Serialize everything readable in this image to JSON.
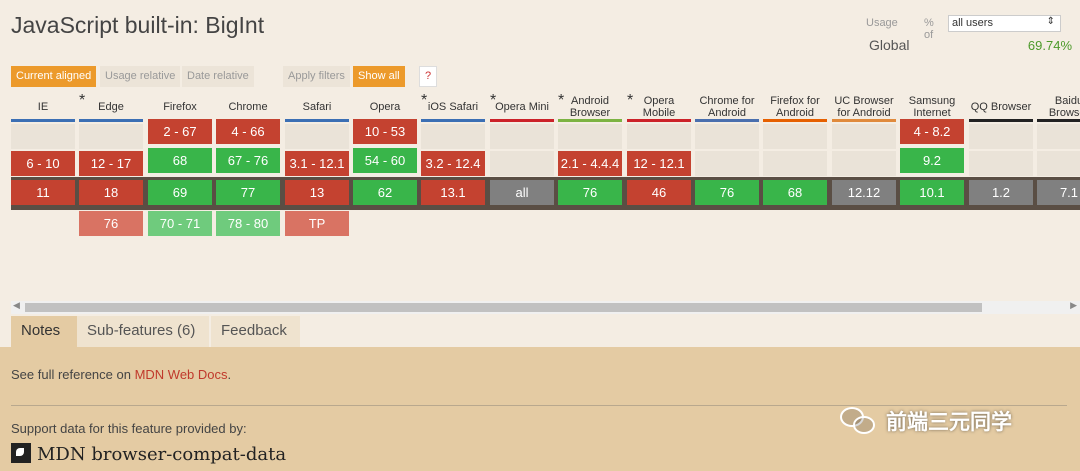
{
  "title": "JavaScript built-in: BigInt",
  "usage": {
    "label": "Usage",
    "pct_of": "% of",
    "selected": "all users",
    "region": "Global",
    "value": "69.74%"
  },
  "toolbar": {
    "current_aligned": "Current aligned",
    "usage_relative": "Usage relative",
    "date_relative": "Date relative",
    "apply_filters": "Apply filters",
    "show_all": "Show all",
    "help": "?"
  },
  "colors": {
    "supported": "#39b54a",
    "unsupported": "#c44230",
    "unknown": "#808080",
    "accent": "#ec9a2b"
  },
  "browsers": [
    {
      "name": "IE",
      "star": false,
      "bar": "#3b6fb4",
      "cells": [
        [
          "",
          "e"
        ],
        [
          "6 - 10",
          "r"
        ],
        [
          "11",
          "r"
        ],
        [
          "",
          "none"
        ]
      ]
    },
    {
      "name": "Edge",
      "star": true,
      "bar": "#3b6fb4",
      "cells": [
        [
          "",
          "e"
        ],
        [
          "12 - 17",
          "r"
        ],
        [
          "18",
          "r"
        ],
        [
          "76",
          "rl"
        ]
      ]
    },
    {
      "name": "Firefox",
      "star": false,
      "bar": "#e66000",
      "pre": [
        "2 - 67",
        "r"
      ],
      "cells": [
        [
          "68",
          "g"
        ],
        [
          "69",
          "g"
        ],
        [
          "70 - 71",
          "gl"
        ]
      ]
    },
    {
      "name": "Chrome",
      "star": false,
      "bar": "#4a6fae",
      "pre": [
        "4 - 66",
        "r"
      ],
      "cells": [
        [
          "67 - 76",
          "g"
        ],
        [
          "77",
          "g"
        ],
        [
          "78 - 80",
          "gl"
        ]
      ]
    },
    {
      "name": "Safari",
      "star": false,
      "bar": "#3b6fb4",
      "cells": [
        [
          "",
          "e"
        ],
        [
          "3.1 - 12.1",
          "r"
        ],
        [
          "13",
          "r"
        ],
        [
          "TP",
          "rl"
        ]
      ]
    },
    {
      "name": "Opera",
      "star": false,
      "bar": "#cc2229",
      "pre": [
        "10 - 53",
        "r"
      ],
      "cells": [
        [
          "54 - 60",
          "g"
        ],
        [
          "62",
          "g"
        ],
        [
          "",
          "none"
        ]
      ]
    },
    {
      "name": "iOS Safari",
      "star": true,
      "bar": "#3b6fb4",
      "cells": [
        [
          "",
          "e"
        ],
        [
          "3.2 - 12.4",
          "r"
        ],
        [
          "13.1",
          "r"
        ],
        [
          "",
          "none"
        ]
      ]
    },
    {
      "name": "Opera Mini",
      "star": true,
      "bar": "#cc2229",
      "cells": [
        [
          "",
          "e"
        ],
        [
          "",
          "e"
        ],
        [
          "all",
          "gr"
        ],
        [
          "",
          "none"
        ]
      ]
    },
    {
      "name": "Android Browser",
      "star": true,
      "bar": "#7cb342",
      "cells": [
        [
          "",
          "e"
        ],
        [
          "2.1 - 4.4.4",
          "r"
        ],
        [
          "76",
          "g"
        ],
        [
          "",
          "none"
        ]
      ]
    },
    {
      "name": "Opera Mobile",
      "star": true,
      "bar": "#cc2229",
      "cells": [
        [
          "",
          "e"
        ],
        [
          "12 - 12.1",
          "r"
        ],
        [
          "46",
          "r"
        ],
        [
          "",
          "none"
        ]
      ]
    },
    {
      "name": "Chrome for Android",
      "star": false,
      "bar": "#4a6fae",
      "cells": [
        [
          "",
          "e"
        ],
        [
          "",
          "e"
        ],
        [
          "76",
          "g"
        ],
        [
          "",
          "none"
        ]
      ]
    },
    {
      "name": "Firefox for Android",
      "star": false,
      "bar": "#e66000",
      "cells": [
        [
          "",
          "e"
        ],
        [
          "",
          "e"
        ],
        [
          "68",
          "g"
        ],
        [
          "",
          "none"
        ]
      ]
    },
    {
      "name": "UC Browser for Android",
      "star": false,
      "bar": "#e08a3c",
      "cells": [
        [
          "",
          "e"
        ],
        [
          "",
          "e"
        ],
        [
          "12.12",
          "gr"
        ],
        [
          "",
          "none"
        ]
      ]
    },
    {
      "name": "Samsung Internet",
      "star": false,
      "bar": "#8a4fd6",
      "pre": [
        "4 - 8.2",
        "r"
      ],
      "cells": [
        [
          "9.2",
          "g"
        ],
        [
          "10.1",
          "g"
        ],
        [
          "",
          "none"
        ]
      ]
    },
    {
      "name": "QQ Browser",
      "star": false,
      "bar": "#222222",
      "cells": [
        [
          "",
          "e"
        ],
        [
          "",
          "e"
        ],
        [
          "1.2",
          "gr"
        ],
        [
          "",
          "none"
        ]
      ]
    },
    {
      "name": "Baidu Browser",
      "star": false,
      "bar": "#222222",
      "cells": [
        [
          "",
          "e"
        ],
        [
          "",
          "e"
        ],
        [
          "7.1",
          "gr"
        ],
        [
          "",
          "none"
        ]
      ]
    }
  ],
  "tabs": [
    "Notes",
    "Sub-features (6)",
    "Feedback"
  ],
  "notes": {
    "prefix": "See full reference on ",
    "link": "MDN Web Docs",
    "suffix": "."
  },
  "support": "Support data for this feature provided by:",
  "mdn": "MDN browser-compat-data",
  "watermark": "前端三元同学"
}
